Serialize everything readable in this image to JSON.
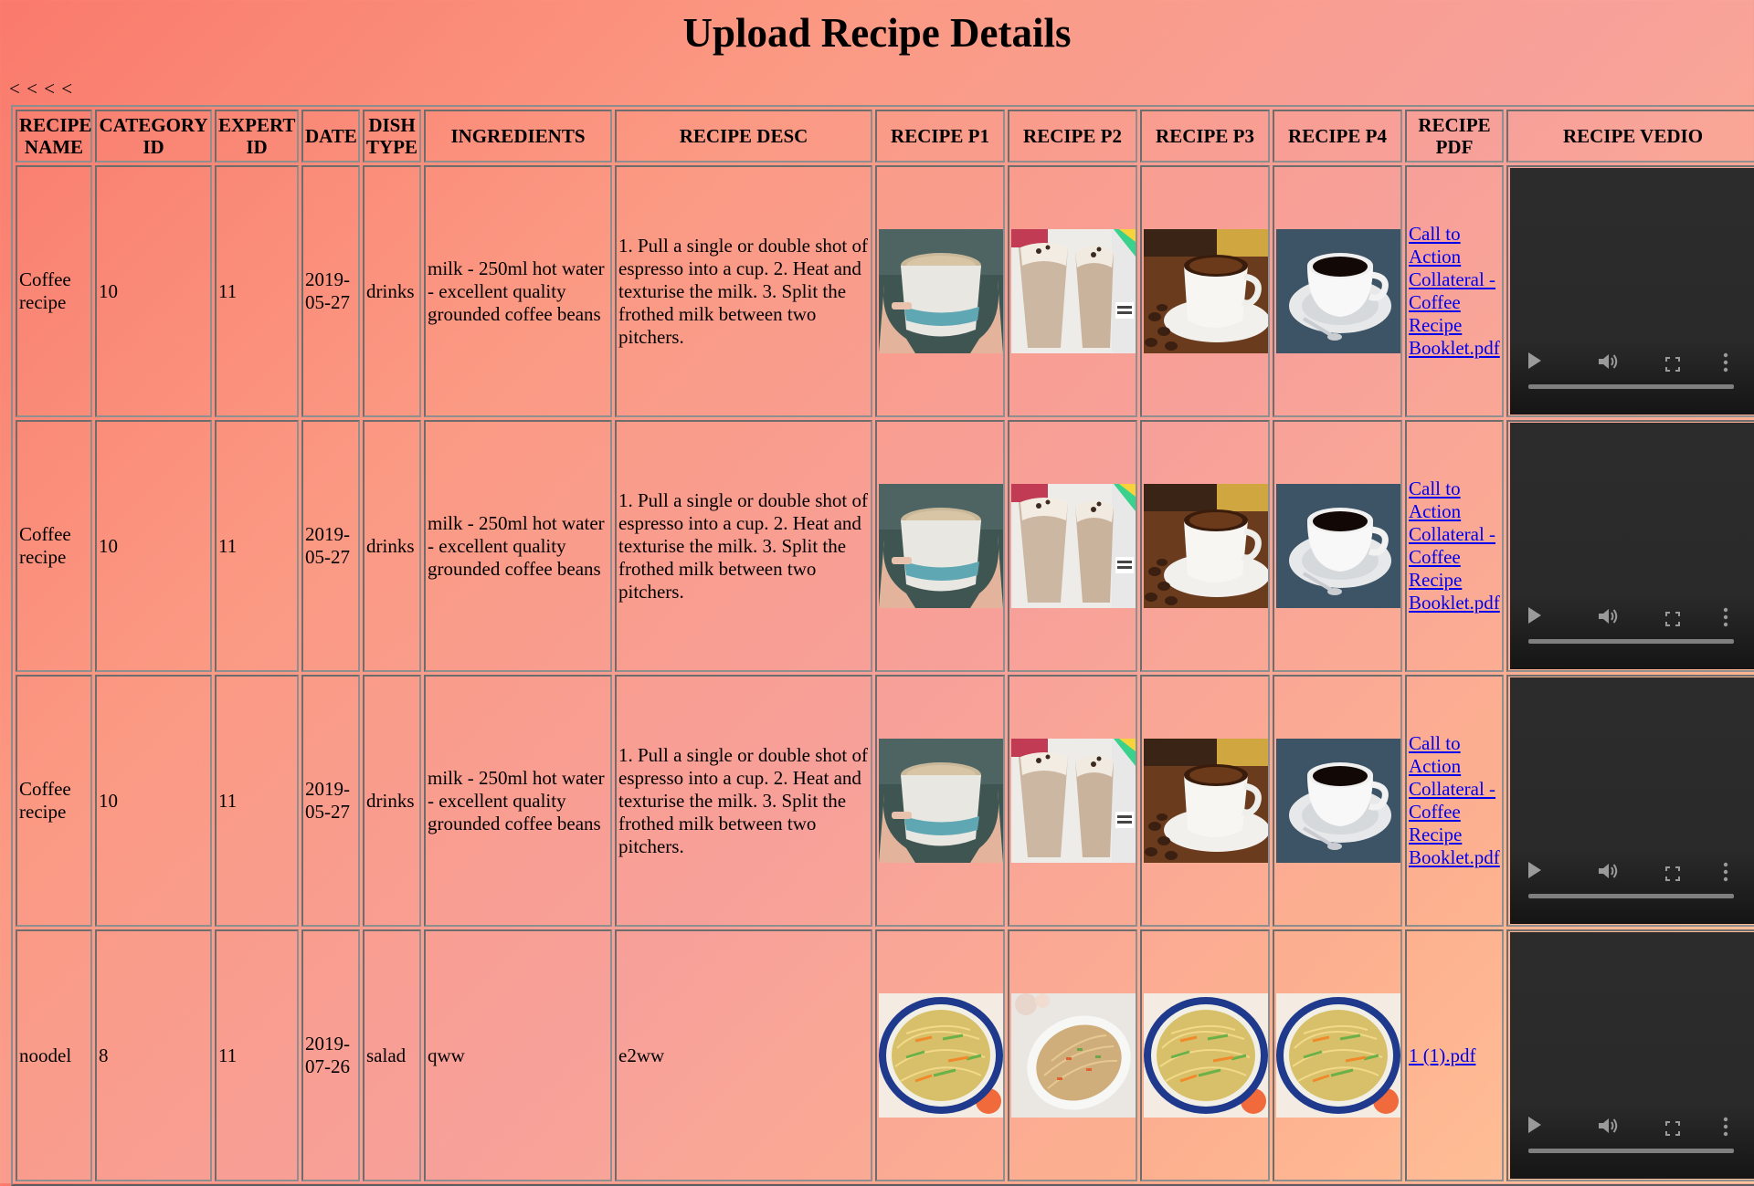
{
  "page": {
    "title": "Upload Recipe Details",
    "back_text": "< < < <"
  },
  "table": {
    "headers": {
      "recipe_name": "RECIPE NAME",
      "category_id": "CATEGORY ID",
      "expert_id": "EXPERT ID",
      "date": "DATE",
      "dish_type": "DISH TYPE",
      "ingredients": "INGREDIENTS",
      "recipe_desc": "RECIPE DESC",
      "recipe_p1": "RECIPE P1",
      "recipe_p2": "RECIPE P2",
      "recipe_p3": "RECIPE P3",
      "recipe_p4": "RECIPE P4",
      "recipe_pdf": "RECIPE PDF",
      "recipe_video": "RECIPE VEDIO"
    },
    "rows": [
      {
        "name": "Coffee recipe",
        "category_id": "10",
        "expert_id": "11",
        "date": "2019-05-27",
        "dish_type": "drinks",
        "ingredients": "milk - 250ml hot water - excellent quality grounded coffee beans",
        "description": "1. Pull a single or double shot of espresso into a cup. 2. Heat and texturise the milk. 3. Split the frothed milk between two pitchers.",
        "photos": [
          "latte-cup-in-hands-image",
          "cold-coffee-glasses-image",
          "black-coffee-cup-with-beans-image",
          "black-coffee-cup-on-saucer-image"
        ],
        "pdf": "Call to Action Collateral - Coffee Recipe Booklet.pdf"
      },
      {
        "name": "Coffee recipe",
        "category_id": "10",
        "expert_id": "11",
        "date": "2019-05-27",
        "dish_type": "drinks",
        "ingredients": "milk - 250ml hot water - excellent quality grounded coffee beans",
        "description": "1. Pull a single or double shot of espresso into a cup. 2. Heat and texturise the milk. 3. Split the frothed milk between two pitchers.",
        "photos": [
          "latte-cup-in-hands-image",
          "cold-coffee-glasses-image",
          "black-coffee-cup-with-beans-image",
          "black-coffee-cup-on-saucer-image"
        ],
        "pdf": "Call to Action Collateral - Coffee Recipe Booklet.pdf"
      },
      {
        "name": "Coffee recipe",
        "category_id": "10",
        "expert_id": "11",
        "date": "2019-05-27",
        "dish_type": "drinks",
        "ingredients": "milk - 250ml hot water - excellent quality grounded coffee beans",
        "description": "1. Pull a single or double shot of espresso into a cup. 2. Heat and texturise the milk. 3. Split the frothed milk between two pitchers.",
        "photos": [
          "latte-cup-in-hands-image",
          "cold-coffee-glasses-image",
          "black-coffee-cup-with-beans-image",
          "black-coffee-cup-on-saucer-image"
        ],
        "pdf": "Call to Action Collateral - Coffee Recipe Booklet.pdf"
      },
      {
        "name": "noodel",
        "category_id": "8",
        "expert_id": "11",
        "date": "2019-07-26",
        "dish_type": "salad",
        "ingredients": "qww",
        "description": "e2ww",
        "photos": [
          "noodles-plate-image",
          "noodles-oval-dish-image",
          "noodles-plate-image",
          "noodles-plate-image"
        ],
        "pdf": "1 (1).pdf"
      }
    ]
  },
  "video_controls": [
    "play-icon",
    "volume-icon",
    "fullscreen-icon",
    "more-options-icon"
  ]
}
